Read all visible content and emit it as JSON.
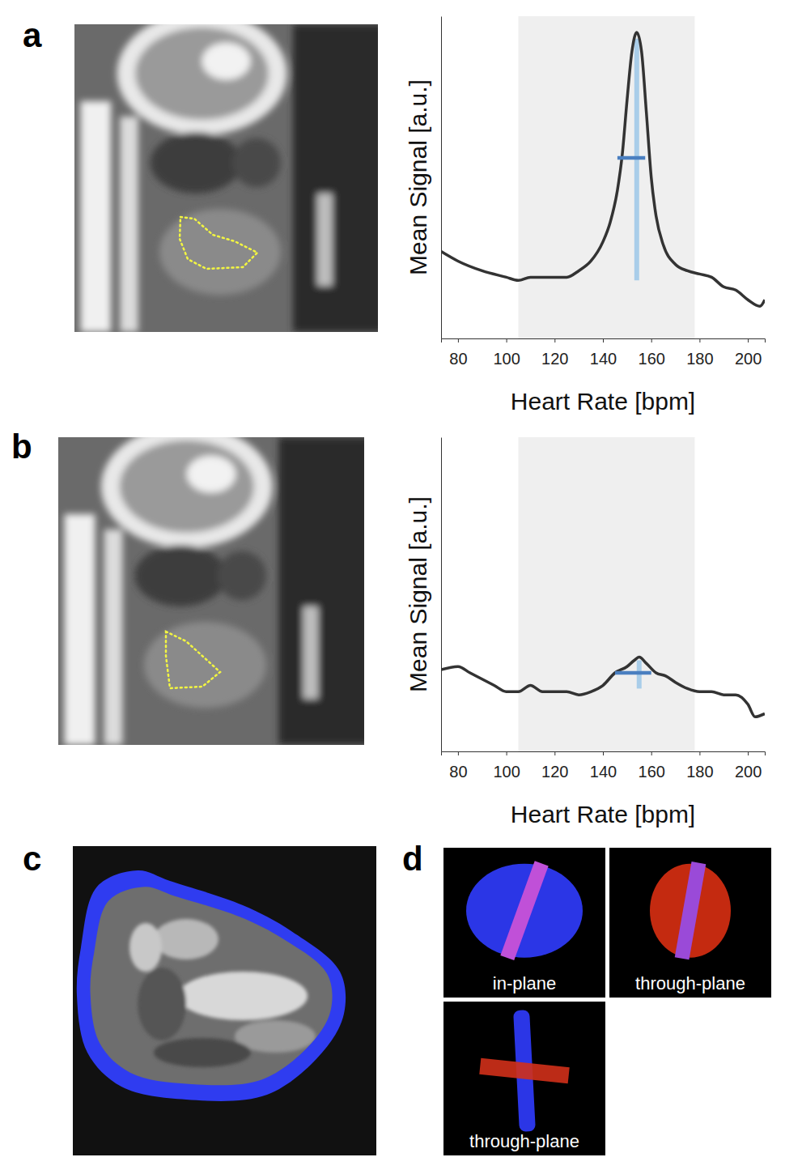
{
  "chart_data": [
    {
      "type": "line",
      "xlabel": "Heart Rate [bpm]",
      "ylabel": "Mean Signal [a.u.]",
      "x": [
        73,
        80,
        90,
        100,
        105,
        110,
        115,
        120,
        125,
        130,
        135,
        140,
        143,
        146,
        148,
        150,
        152,
        154,
        156,
        158,
        160,
        162,
        165,
        170,
        175,
        180,
        185,
        190,
        195,
        200,
        205,
        207
      ],
      "values": [
        0.27,
        0.24,
        0.21,
        0.19,
        0.18,
        0.19,
        0.19,
        0.19,
        0.19,
        0.21,
        0.24,
        0.3,
        0.36,
        0.46,
        0.57,
        0.74,
        0.89,
        0.95,
        0.89,
        0.7,
        0.5,
        0.38,
        0.29,
        0.23,
        0.21,
        0.2,
        0.19,
        0.16,
        0.15,
        0.12,
        0.1,
        0.12
      ],
      "color": "#333333",
      "xlim": [
        73,
        207
      ],
      "ylim": [
        0,
        1
      ],
      "xticks": [
        80,
        100,
        120,
        140,
        160,
        180,
        200
      ],
      "tick_labels": "x",
      "shaded_range": [
        105,
        178
      ],
      "peak_x": 154,
      "peak_line_y": [
        0.18,
        0.93
      ],
      "interval": [
        146,
        157.5
      ],
      "interval_y": 0.56
    },
    {
      "type": "line",
      "xlabel": "Heart Rate [bpm]",
      "ylabel": "Mean Signal [a.u.]",
      "x": [
        73,
        80,
        85,
        90,
        95,
        100,
        105,
        110,
        115,
        120,
        125,
        130,
        135,
        140,
        145,
        150,
        153,
        155,
        158,
        162,
        166,
        170,
        175,
        180,
        185,
        190,
        195,
        200,
        203,
        207
      ],
      "values": [
        0.26,
        0.27,
        0.25,
        0.23,
        0.21,
        0.19,
        0.19,
        0.21,
        0.19,
        0.19,
        0.19,
        0.18,
        0.19,
        0.21,
        0.25,
        0.27,
        0.29,
        0.3,
        0.28,
        0.25,
        0.24,
        0.22,
        0.2,
        0.19,
        0.19,
        0.18,
        0.18,
        0.15,
        0.11,
        0.12
      ],
      "color": "#333333",
      "xlim": [
        73,
        207
      ],
      "ylim": [
        0,
        1
      ],
      "xticks": [
        80,
        100,
        120,
        140,
        160,
        180,
        200
      ],
      "tick_labels": "x",
      "shaded_range": [
        105,
        178
      ],
      "peak_x": 155,
      "peak_line_y": [
        0.2,
        0.29
      ],
      "interval": [
        145,
        160
      ],
      "interval_y": 0.25
    }
  ],
  "panels": {
    "letters": [
      "a",
      "b",
      "c",
      "d"
    ],
    "view_labels": [
      "in-plane",
      "through-plane",
      "through-plane"
    ]
  }
}
